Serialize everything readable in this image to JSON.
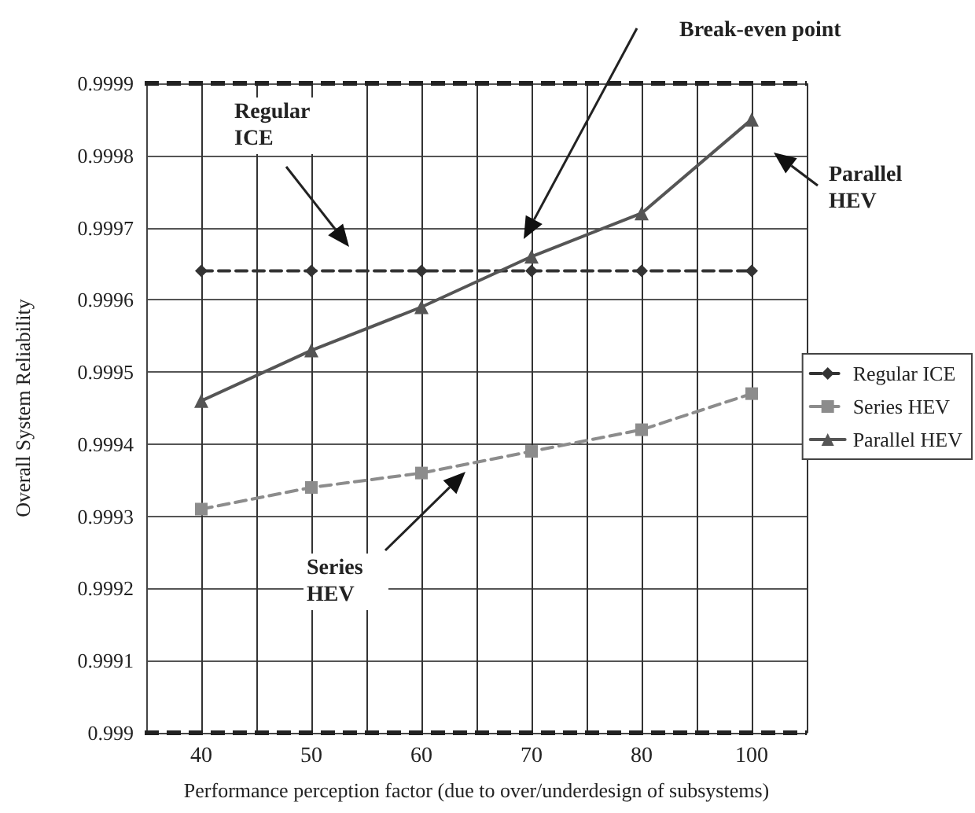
{
  "chart_data": {
    "type": "line",
    "xlabel": "Performance perception factor (due to over/underdesign of subsystems)",
    "ylabel": "Overall System Reliability",
    "categories": [
      "40",
      "50",
      "60",
      "70",
      "80",
      "100"
    ],
    "series": [
      {
        "name": "Regular ICE",
        "color": "#333333",
        "marker": "diamond",
        "line_style": "dashed",
        "values": [
          0.99964,
          0.99964,
          0.99964,
          0.99964,
          0.99964,
          0.99964
        ]
      },
      {
        "name": "Series HEV",
        "color": "#8c8c8c",
        "marker": "square",
        "line_style": "dashed",
        "values": [
          0.99931,
          0.99934,
          0.99936,
          0.99939,
          0.99942,
          0.99947
        ]
      },
      {
        "name": "Parallel HEV",
        "color": "#555555",
        "marker": "triangle",
        "line_style": "solid",
        "values": [
          0.99946,
          0.99953,
          0.99959,
          0.99966,
          0.99972,
          0.99985
        ]
      }
    ],
    "ylim": [
      0.999,
      0.9999
    ],
    "yticks": [
      0.999,
      0.9991,
      0.9992,
      0.9993,
      0.9994,
      0.9995,
      0.9996,
      0.9997,
      0.9998,
      0.9999
    ],
    "ref_lines": [
      {
        "axis": "y",
        "value": 0.9999,
        "color": "#222222",
        "line_style": "dashed"
      },
      {
        "axis": "y",
        "value": 0.999,
        "color": "#222222",
        "line_style": "dashed"
      }
    ],
    "annotations": [
      "Break-even point",
      "Regular ICE",
      "Parallel HEV",
      "Series HEV"
    ],
    "grid": true,
    "legend": "right"
  }
}
